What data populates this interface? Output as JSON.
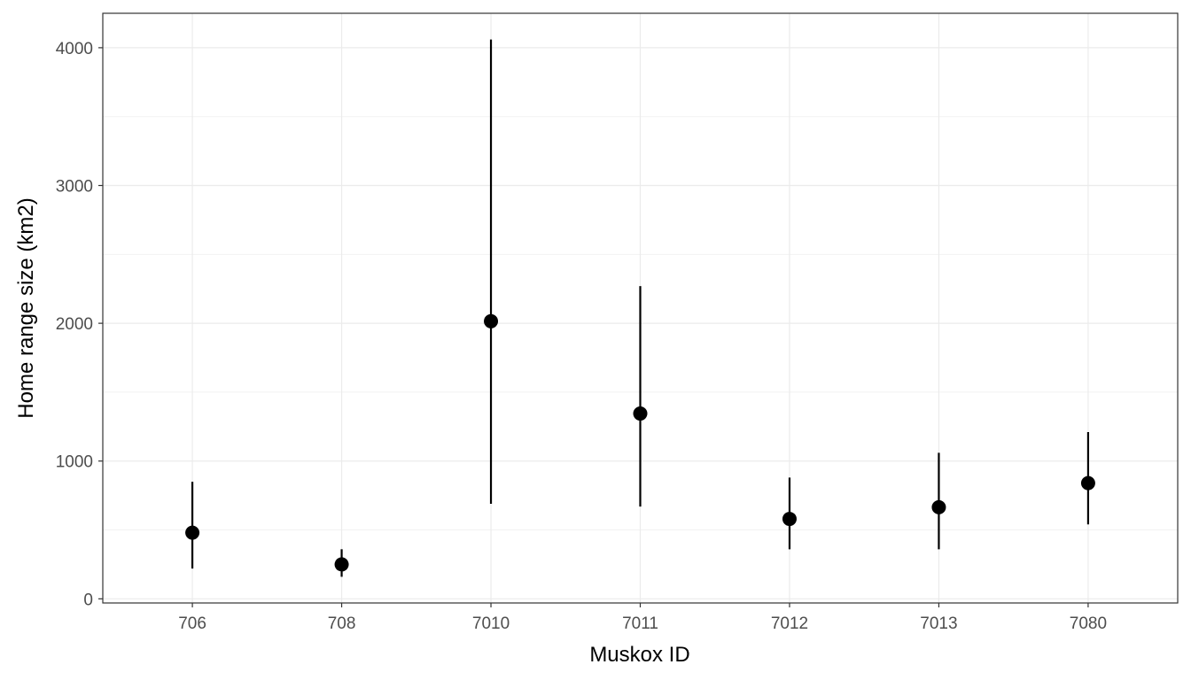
{
  "chart_data": {
    "type": "scatter",
    "subtype": "point-range",
    "xlabel": "Muskox ID",
    "ylabel": "Home range size (km2)",
    "categories": [
      "706",
      "708",
      "7010",
      "7011",
      "7012",
      "7013",
      "7080"
    ],
    "points": [
      {
        "category": "706",
        "value": 480,
        "low": 220,
        "high": 850
      },
      {
        "category": "708",
        "value": 250,
        "low": 160,
        "high": 360
      },
      {
        "category": "7010",
        "value": 2015,
        "low": 690,
        "high": 4060
      },
      {
        "category": "7011",
        "value": 1345,
        "low": 670,
        "high": 2270
      },
      {
        "category": "7012",
        "value": 580,
        "low": 360,
        "high": 880
      },
      {
        "category": "7013",
        "value": 665,
        "low": 360,
        "high": 1060
      },
      {
        "category": "7080",
        "value": 840,
        "low": 540,
        "high": 1210
      }
    ],
    "ylim": [
      -30,
      4250
    ],
    "y_ticks": [
      0,
      1000,
      2000,
      3000,
      4000
    ],
    "y_tick_labels": [
      "0",
      "1000",
      "2000",
      "3000",
      "4000"
    ],
    "grid": true,
    "colors": {
      "point": "#000000",
      "grid_major": "#ebebeb",
      "grid_minor": "#f2f2f2",
      "panel_border": "#333333",
      "tick_text": "#4d4d4d"
    }
  }
}
